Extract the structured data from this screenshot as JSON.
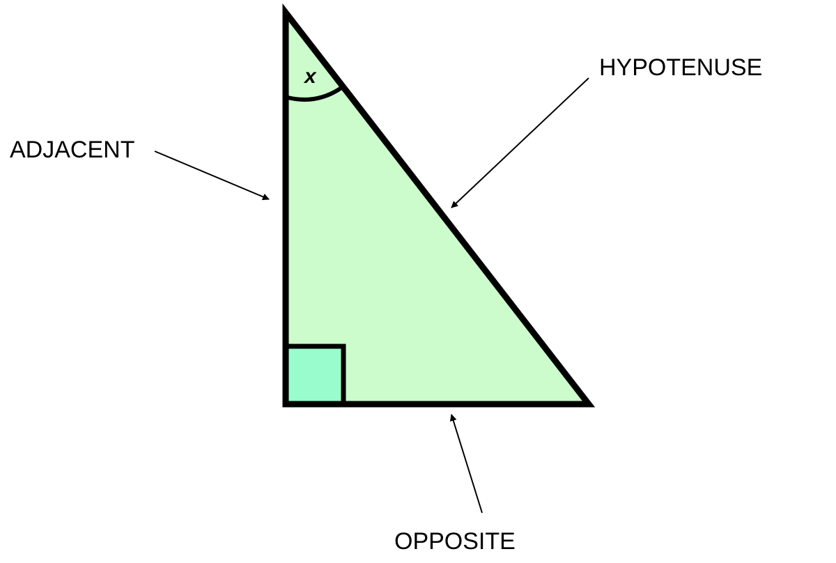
{
  "labels": {
    "hypotenuse": "HYPOTENUSE",
    "adjacent": "ADJACENT",
    "opposite": "OPPOSITE",
    "angle": "x"
  },
  "colors": {
    "triangle_fill": "#ccfccc",
    "right_angle_fill": "#99fccc",
    "stroke": "#000000",
    "background": "#ffffff"
  }
}
